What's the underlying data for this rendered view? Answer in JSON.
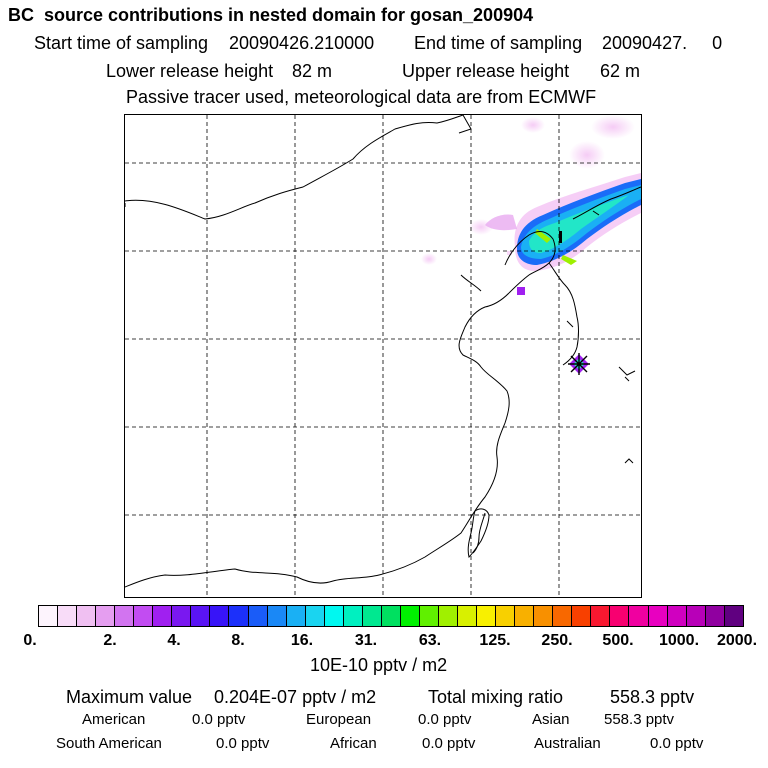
{
  "header": {
    "title": "BC  source contributions in nested domain for gosan_200904",
    "start_label": "Start time of sampling",
    "start_value": "20090426.210000",
    "end_label": "End time of sampling",
    "end_value": "20090427.     0",
    "lower_label": "Lower release height",
    "lower_value": "82 m",
    "upper_label": "Upper release height",
    "upper_value": "62 m",
    "note": "Passive tracer used, meteorological data are from ECMWF"
  },
  "colorbar": {
    "colors": [
      "#fdf4fd",
      "#f8dcf8",
      "#f0c0f2",
      "#e59ef0",
      "#d274f0",
      "#c24cf2",
      "#a020f0",
      "#7a18f0",
      "#5a14f4",
      "#3814f8",
      "#1c30fa",
      "#1a5cf8",
      "#1a88f6",
      "#1ab0f4",
      "#1ad4f0",
      "#00f8f0",
      "#00f0c0",
      "#00e890",
      "#00e060",
      "#00f000",
      "#60f000",
      "#a0f000",
      "#d8f000",
      "#f8f000",
      "#f8d000",
      "#f8b000",
      "#f89000",
      "#f86800",
      "#f84000",
      "#f81830",
      "#f80070",
      "#f000a0",
      "#e800c0",
      "#d000c0",
      "#b800b8",
      "#9000a0",
      "#600080"
    ],
    "tick_labels": [
      "0.",
      "2.",
      "4.",
      "8.",
      "16.",
      "31.",
      "63.",
      "125.",
      "250.",
      "500.",
      "1000.",
      "2000."
    ],
    "unit": "10E-10 pptv / m2"
  },
  "summary": {
    "max_label": "Maximum value",
    "max_value": "0.204E-07 pptv / m2",
    "total_label": "Total mixing ratio",
    "total_value": "558.3 pptv",
    "regions": [
      {
        "name": "American",
        "value": "0.0 pptv"
      },
      {
        "name": "European",
        "value": "0.0 pptv"
      },
      {
        "name": "Asian",
        "value": "558.3 pptv"
      },
      {
        "name": "South American",
        "value": "0.0 pptv"
      },
      {
        "name": "African",
        "value": "0.0 pptv"
      },
      {
        "name": "Australian",
        "value": "0.0 pptv"
      }
    ]
  },
  "map": {
    "plume_colors": {
      "light": "#f6c8f6",
      "mid": "#1fa0f6",
      "core": "#22e6c8",
      "hot": "#9ef000",
      "spot": "#a020f0"
    },
    "receptor_icon": "star-marker-icon"
  }
}
